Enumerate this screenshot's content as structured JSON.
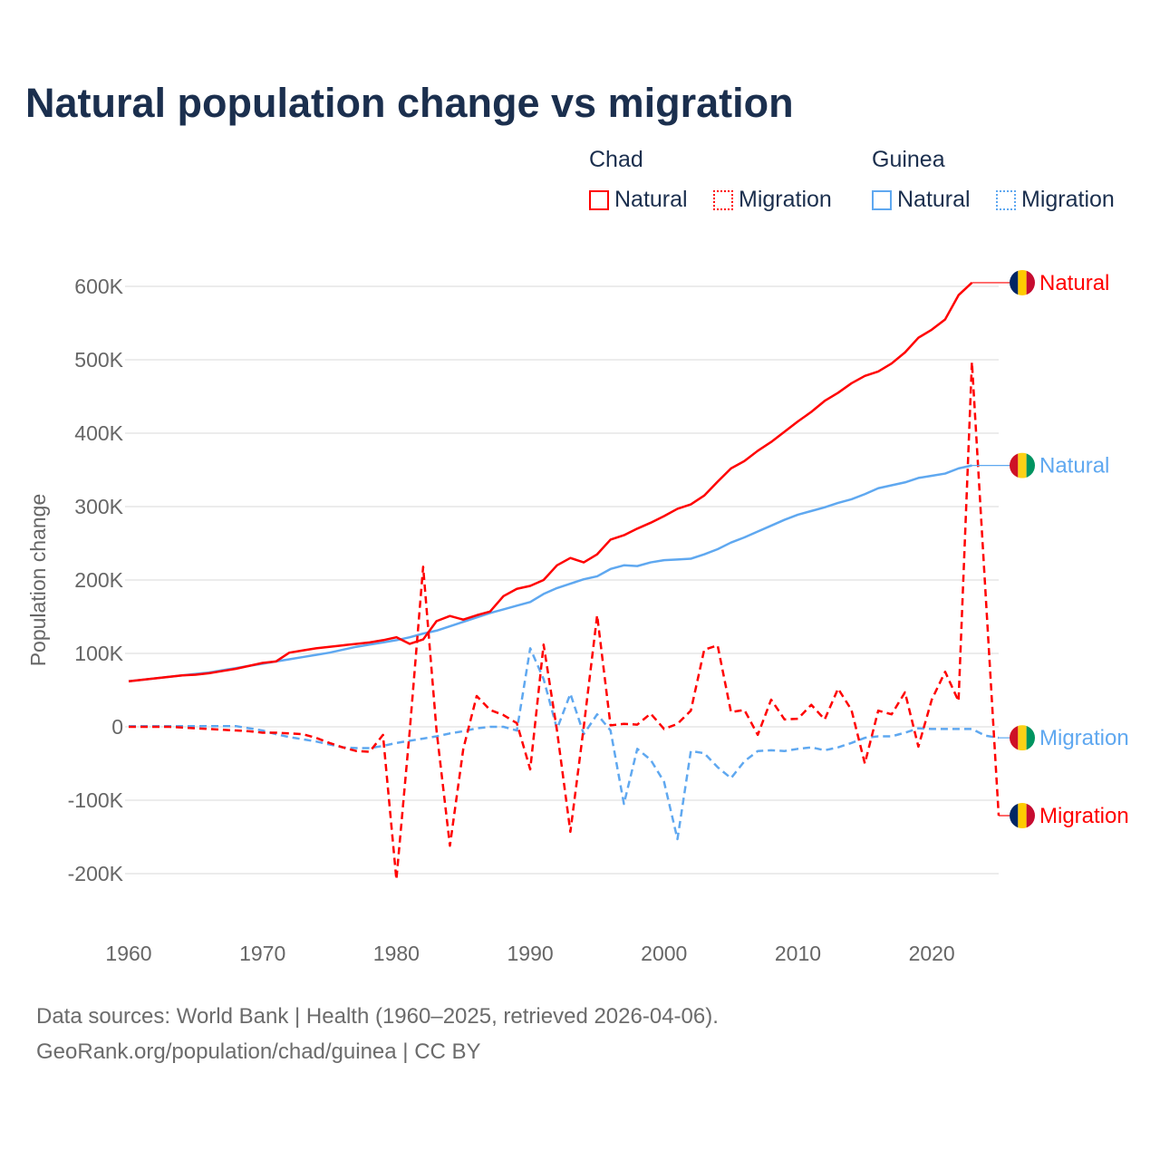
{
  "chart_data": {
    "type": "line",
    "title": "Natural population change vs migration",
    "xlabel": "",
    "ylabel": "Population change",
    "xlim": [
      1960,
      2025
    ],
    "ylim": [
      -200000,
      600000
    ],
    "x_ticks": [
      1960,
      1970,
      1980,
      1990,
      2000,
      2010,
      2020
    ],
    "y_ticks": [
      -200000,
      -100000,
      0,
      100000,
      200000,
      300000,
      400000,
      500000,
      600000
    ],
    "y_tick_labels": [
      "-200K",
      "-100K",
      "0",
      "100K",
      "200K",
      "300K",
      "400K",
      "500K",
      "600K"
    ],
    "grid": true,
    "legend_placement": "top-right",
    "legend": {
      "groups": [
        {
          "country": "Chad",
          "items": [
            "Natural",
            "Migration"
          ]
        },
        {
          "country": "Guinea",
          "items": [
            "Natural",
            "Migration"
          ]
        }
      ]
    },
    "series": [
      {
        "name": "Chad Natural",
        "country": "Chad",
        "kind": "Natural",
        "color": "#ff0000",
        "dashed": false,
        "end_label": "Natural",
        "start_year": 1960,
        "values": [
          62,
          64,
          66,
          68,
          70,
          71,
          73,
          76,
          79,
          83,
          87,
          89,
          101,
          104,
          107,
          109,
          111,
          113,
          115,
          118,
          122,
          113,
          119,
          144,
          151,
          146,
          152,
          157,
          178,
          188,
          192,
          200,
          220,
          230,
          224,
          235,
          255,
          261,
          270,
          278,
          287,
          297,
          303,
          315,
          334,
          352,
          362,
          376,
          388,
          402,
          416,
          429,
          444,
          455,
          468,
          478,
          484,
          495,
          510,
          530,
          541,
          555,
          588,
          605
        ]
      },
      {
        "name": "Chad Migration",
        "country": "Chad",
        "kind": "Migration",
        "color": "#ff0000",
        "dashed": true,
        "end_label": "Migration",
        "start_year": 1960,
        "values": [
          0,
          0,
          0,
          0,
          -1,
          -2,
          -3,
          -4,
          -5,
          -6,
          -8,
          -8,
          -9,
          -10,
          -15,
          -22,
          -28,
          -33,
          -34,
          -11,
          -208,
          -5,
          218,
          -5,
          -162,
          -30,
          42,
          23,
          16,
          5,
          -58,
          112,
          -5,
          -143,
          0,
          152,
          2,
          4,
          3,
          18,
          -3,
          4,
          22,
          105,
          111,
          20,
          23,
          -11,
          37,
          10,
          11,
          30,
          10,
          52,
          23,
          -50,
          22,
          17,
          47,
          -27,
          37,
          75,
          35,
          497,
          188,
          -121
        ]
      },
      {
        "name": "Guinea Natural",
        "country": "Guinea",
        "kind": "Natural",
        "color": "#5fa8f0",
        "dashed": false,
        "end_label": "Natural",
        "start_year": 1960,
        "values": [
          62,
          64,
          66,
          68,
          70,
          72,
          74,
          77,
          80,
          83,
          86,
          89,
          92,
          95,
          98,
          101,
          105,
          109,
          112,
          115,
          118,
          122,
          127,
          131,
          137,
          143,
          149,
          155,
          160,
          165,
          170,
          181,
          189,
          195,
          201,
          205,
          215,
          220,
          219,
          224,
          227,
          228,
          229,
          235,
          242,
          251,
          258,
          266,
          274,
          282,
          289,
          294,
          299,
          305,
          310,
          317,
          325,
          329,
          333,
          339,
          342,
          345,
          352,
          356
        ]
      },
      {
        "name": "Guinea Migration",
        "country": "Guinea",
        "kind": "Migration",
        "color": "#5fa8f0",
        "dashed": true,
        "end_label": "Migration",
        "start_year": 1960,
        "values": [
          1,
          1,
          1,
          1,
          1,
          1,
          1,
          1,
          1,
          -2,
          -5,
          -10,
          -14,
          -17,
          -20,
          -24,
          -28,
          -29,
          -29,
          -26,
          -22,
          -19,
          -16,
          -13,
          -9,
          -6,
          -2,
          0,
          0,
          -5,
          107,
          65,
          -3,
          45,
          -10,
          17,
          -5,
          -105,
          -30,
          -45,
          -75,
          -153,
          -33,
          -36,
          -55,
          -70,
          -47,
          -33,
          -32,
          -33,
          -30,
          -28,
          -32,
          -28,
          -22,
          -15,
          -13,
          -13,
          -8,
          -2,
          -3,
          -3,
          -3,
          -3,
          -12,
          -15
        ]
      }
    ],
    "value_unit": "thousands"
  },
  "footer": {
    "line1": "Data sources: World Bank | Health (1960–2025, retrieved 2026-04-06).",
    "line2": "GeoRank.org/population/chad/guinea | CC BY"
  }
}
